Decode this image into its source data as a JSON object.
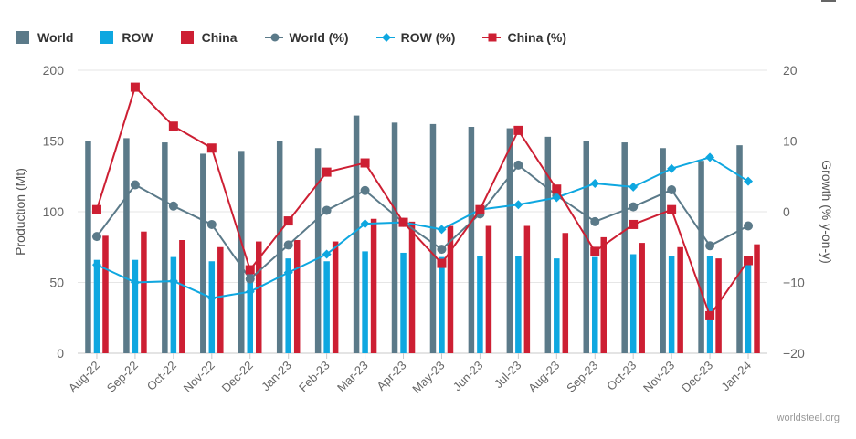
{
  "chart_data": {
    "type": "bar",
    "categories": [
      "Aug-22",
      "Sep-22",
      "Oct-22",
      "Nov-22",
      "Dec-22",
      "Jan-23",
      "Feb-23",
      "Mar-23",
      "Apr-23",
      "May-23",
      "Jun-23",
      "Jul-23",
      "Aug-23",
      "Sep-23",
      "Oct-23",
      "Nov-23",
      "Dec-23",
      "Jan-24"
    ],
    "ylabel": "Production (Mt)",
    "y2label": "Growth (% y-on-y)",
    "ylim": [
      0,
      200
    ],
    "y2lim": [
      -20,
      20
    ],
    "yticks": [
      "0",
      "50",
      "100",
      "150",
      "200"
    ],
    "y2ticks": [
      "−20",
      "−10",
      "0",
      "10",
      "20"
    ],
    "legend_position": "top-left",
    "bar_series": [
      {
        "name": "World",
        "color": "#5b7a89",
        "values": [
          150,
          152,
          149,
          141,
          143,
          150,
          145,
          168,
          163,
          162,
          160,
          159,
          153,
          150,
          149,
          145,
          136,
          147
        ]
      },
      {
        "name": "ROW",
        "color": "#0ea7e0",
        "values": [
          66,
          66,
          68,
          65,
          57,
          67,
          65,
          72,
          71,
          68,
          69,
          69,
          67,
          68,
          70,
          69,
          69,
          66
        ]
      },
      {
        "name": "China",
        "color": "#cd1f33",
        "values": [
          83,
          86,
          80,
          75,
          79,
          80,
          79,
          95,
          93,
          90,
          90,
          90,
          85,
          82,
          78,
          75,
          67,
          77
        ]
      }
    ],
    "line_series": [
      {
        "name": "World (%)",
        "color": "#5b7a89",
        "marker": "circle",
        "values": [
          -3.5,
          3.8,
          0.8,
          -1.8,
          -9.5,
          -4.7,
          0.2,
          3,
          -1.5,
          -5.3,
          -0.3,
          6.6,
          2.3,
          -1.4,
          0.7,
          3.1,
          -4.8,
          -2
        ]
      },
      {
        "name": "ROW (%)",
        "color": "#0ea7e0",
        "marker": "diamond",
        "values": [
          -7.5,
          -10,
          -9.8,
          -12.2,
          -11.3,
          -8.6,
          -6,
          -1.7,
          -1.5,
          -2.5,
          0.3,
          1,
          2,
          4,
          3.5,
          6.1,
          7.7,
          4.3
        ]
      },
      {
        "name": "China (%)",
        "color": "#cd1f33",
        "marker": "square",
        "values": [
          0.3,
          17.6,
          12.1,
          9,
          -8.2,
          -1.3,
          5.6,
          6.9,
          -1.5,
          -7.3,
          0.3,
          11.5,
          3.2,
          -5.6,
          -1.8,
          0.3,
          -14.7,
          -6.9
        ]
      }
    ]
  },
  "credit": "worldsteel.org"
}
